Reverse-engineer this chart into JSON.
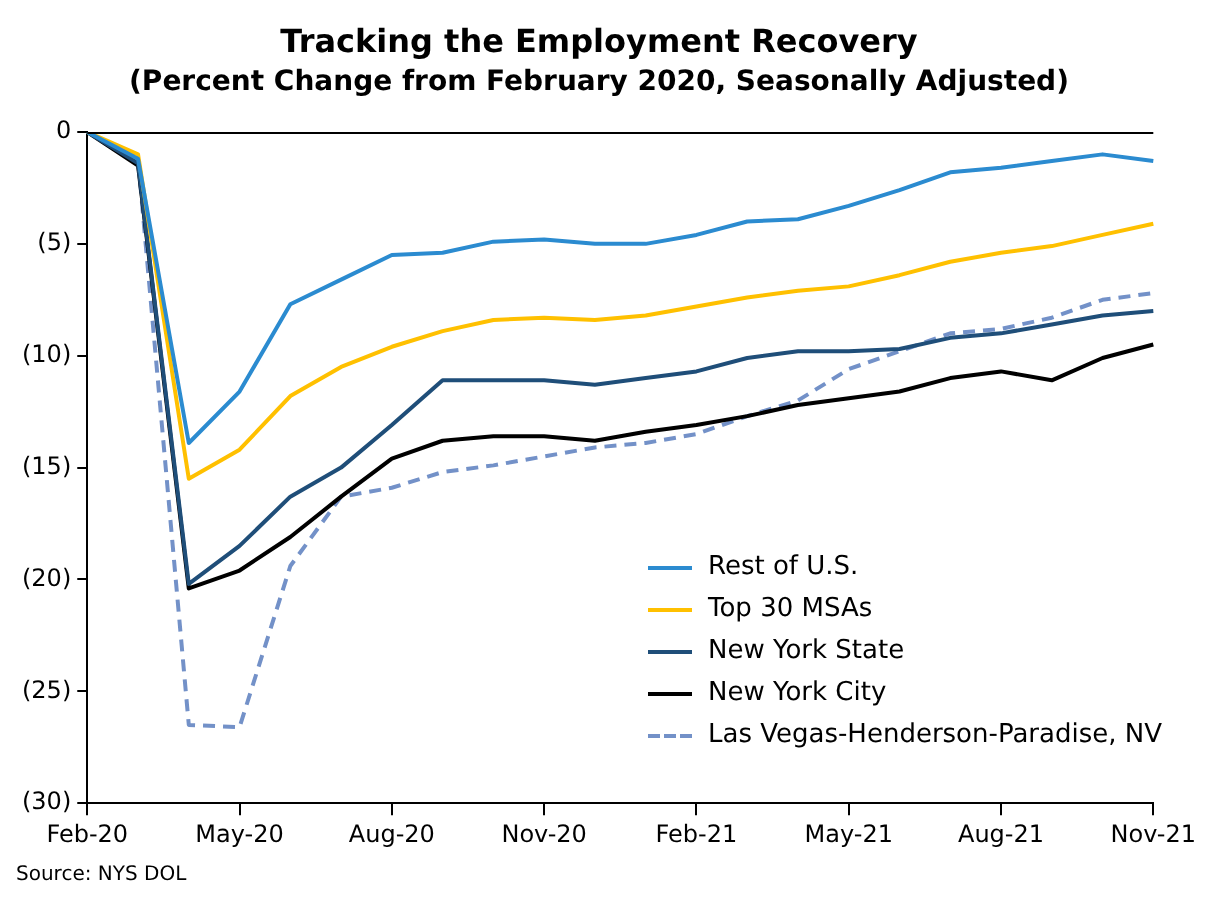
{
  "chart_data": {
    "type": "line",
    "title": "Tracking the Employment Recovery",
    "subtitle": "(Percent Change from February 2020, Seasonally Adjusted)",
    "categories": [
      "Feb-20",
      null,
      null,
      "May-20",
      null,
      null,
      "Aug-20",
      null,
      null,
      "Nov-20",
      null,
      null,
      "Feb-21",
      null,
      null,
      "May-21",
      null,
      null,
      "Aug-21",
      null,
      null,
      "Nov-21"
    ],
    "series": [
      {
        "name": "Rest of U.S.",
        "color": "#2b8bd0",
        "values": [
          0,
          -1.2,
          -13.9,
          -11.6,
          -7.7,
          -6.6,
          -5.5,
          -5.4,
          -4.9,
          -4.8,
          -5.0,
          -5.0,
          -4.6,
          -4.0,
          -3.9,
          -3.3,
          -2.6,
          -1.8,
          -1.6,
          -1.3,
          -1.0,
          -1.3
        ]
      },
      {
        "name": "Top 30 MSAs",
        "color": "#ffc000",
        "values": [
          0,
          -1.0,
          -15.5,
          -14.2,
          -11.8,
          -10.5,
          -9.6,
          -8.9,
          -8.4,
          -8.3,
          -8.4,
          -8.2,
          -7.8,
          -7.4,
          -7.1,
          -6.9,
          -6.4,
          -5.8,
          -5.4,
          -5.1,
          -4.6,
          -4.1
        ]
      },
      {
        "name": "New York State",
        "color": "#1f4e79",
        "values": [
          0,
          -1.4,
          -20.2,
          -18.5,
          -16.3,
          -15.0,
          -13.1,
          -11.1,
          -11.1,
          -11.1,
          -11.3,
          -11.0,
          -10.7,
          -10.1,
          -9.8,
          -9.8,
          -9.7,
          -9.2,
          -9.0,
          -8.6,
          -8.2,
          -8.0
        ]
      },
      {
        "name": "New York City",
        "color": "#000000",
        "values": [
          0,
          -1.5,
          -20.4,
          -19.6,
          -18.1,
          -16.3,
          -14.6,
          -13.8,
          -13.6,
          -13.6,
          -13.8,
          -13.4,
          -13.1,
          -12.7,
          -12.2,
          -11.9,
          -11.6,
          -11.0,
          -10.7,
          -11.1,
          -10.1,
          -9.5
        ]
      },
      {
        "name": "Las Vegas-Henderson-Paradise, NV",
        "color": "#7391c8",
        "line_style": "dashed",
        "values": [
          0,
          -1.2,
          -26.5,
          -26.6,
          -19.4,
          -16.3,
          -15.9,
          -15.2,
          -14.9,
          -14.5,
          -14.1,
          -13.9,
          -13.5,
          -12.7,
          -12.0,
          -10.6,
          -9.8,
          -9.0,
          -8.8,
          -8.3,
          -7.5,
          -7.2
        ]
      }
    ],
    "ylim": [
      -30,
      0
    ],
    "yticks": [
      {
        "value": -30,
        "label": "(30)"
      },
      {
        "value": -25,
        "label": "(25)"
      },
      {
        "value": -20,
        "label": "(20)"
      },
      {
        "value": -15,
        "label": "(15)"
      },
      {
        "value": -10,
        "label": "(10)"
      },
      {
        "value": -5,
        "label": "(5)"
      },
      {
        "value": 0,
        "label": "0"
      }
    ],
    "marker": "none",
    "line_style": "solid",
    "grid": false,
    "legend": "bottom right",
    "annotations": [
      "Source: NYS DOL"
    ]
  }
}
